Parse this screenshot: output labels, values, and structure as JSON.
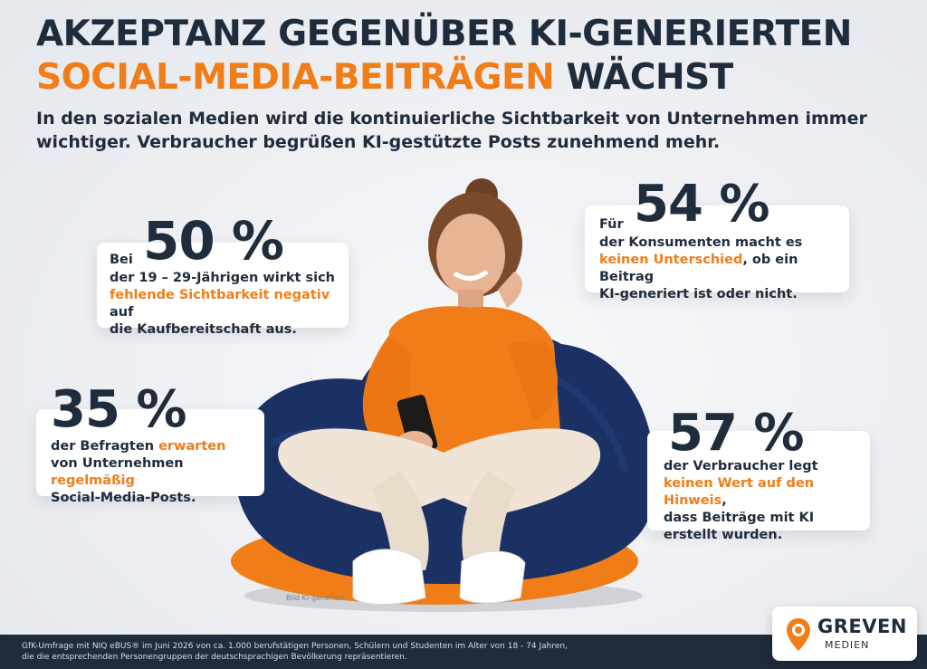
{
  "header": {
    "title_line1": "AKZEPTANZ GEGENÜBER KI-GENERIERTEN",
    "title_line2_highlight": "SOCIAL-MEDIA-BEITRÄGEN",
    "title_line2_rest": " WÄCHST",
    "subtitle": "In den sozialen Medien wird die kontinuierliche Sichtbarkeit von Unternehmen immer wichtiger. Verbraucher begrüßen KI-gestützte Posts zunehmend mehr."
  },
  "stats": {
    "s50": {
      "prefix": "Bei",
      "value": "50 %",
      "text1": "der 19 – 29-Jährigen wirkt sich",
      "highlight": "fehlende Sichtbarkeit negativ",
      "text2": " auf",
      "text3": "die Kaufbereitschaft aus."
    },
    "s54": {
      "prefix": "Für",
      "value": "54 %",
      "text1": "der Konsumenten macht es",
      "highlight": "keinen Unterschied",
      "text2": ", ob ein Beitrag",
      "text3": "KI-generiert ist oder nicht."
    },
    "s35": {
      "value": "35 %",
      "text1": "der Befragten ",
      "highlight1": "erwarten",
      "text2": "von Unternehmen ",
      "highlight2": "regelmäßig",
      "text3": "Social-Media-Posts."
    },
    "s57": {
      "value": "57 %",
      "text1": "der Verbraucher legt",
      "highlight": "keinen Wert auf den Hinweis",
      "text2": ",",
      "text3": "dass Beiträge mit KI",
      "text4": "erstellt wurden."
    }
  },
  "image_credit": "Bild KI-generiert",
  "footer": {
    "line1": "GfK-Umfrage mit NIQ eBUS® im Juni 2026 von ca. 1.000 berufstätigen Personen, Schülern und Studenten im Alter von 18 - 74 Jahren,",
    "line2": "die die entsprechenden Personengruppen der deutschsprachigen Bevölkerung repräsentieren."
  },
  "logo": {
    "name": "GREVEN",
    "sub": "MEDIEN",
    "icon": "location-pin-icon"
  },
  "colors": {
    "accent": "#f07d18",
    "dark": "#1f2c3c",
    "navy": "#1b3163"
  }
}
